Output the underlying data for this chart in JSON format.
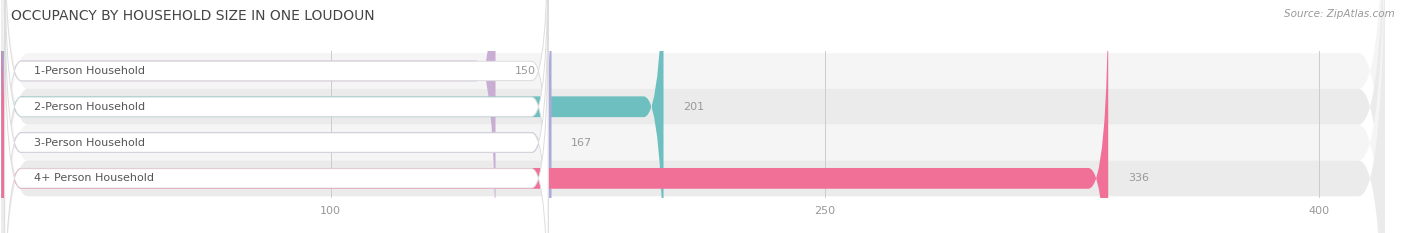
{
  "title": "OCCUPANCY BY HOUSEHOLD SIZE IN ONE LOUDOUN",
  "source": "Source: ZipAtlas.com",
  "categories": [
    "1-Person Household",
    "2-Person Household",
    "3-Person Household",
    "4+ Person Household"
  ],
  "values": [
    150,
    201,
    167,
    336
  ],
  "bar_colors": [
    "#c9aed4",
    "#6dbfc0",
    "#aaaadc",
    "#f07098"
  ],
  "value_color": "#999999",
  "label_color": "#555555",
  "title_color": "#444444",
  "source_color": "#999999",
  "xlim": [
    0,
    420
  ],
  "xticks": [
    100,
    250,
    400
  ],
  "bar_height": 0.58,
  "background_color": "#ffffff",
  "row_bg_even": "#f5f5f5",
  "row_bg_odd": "#ebebeb",
  "title_fontsize": 10,
  "label_fontsize": 8,
  "value_fontsize": 8,
  "tick_fontsize": 8,
  "source_fontsize": 7.5
}
